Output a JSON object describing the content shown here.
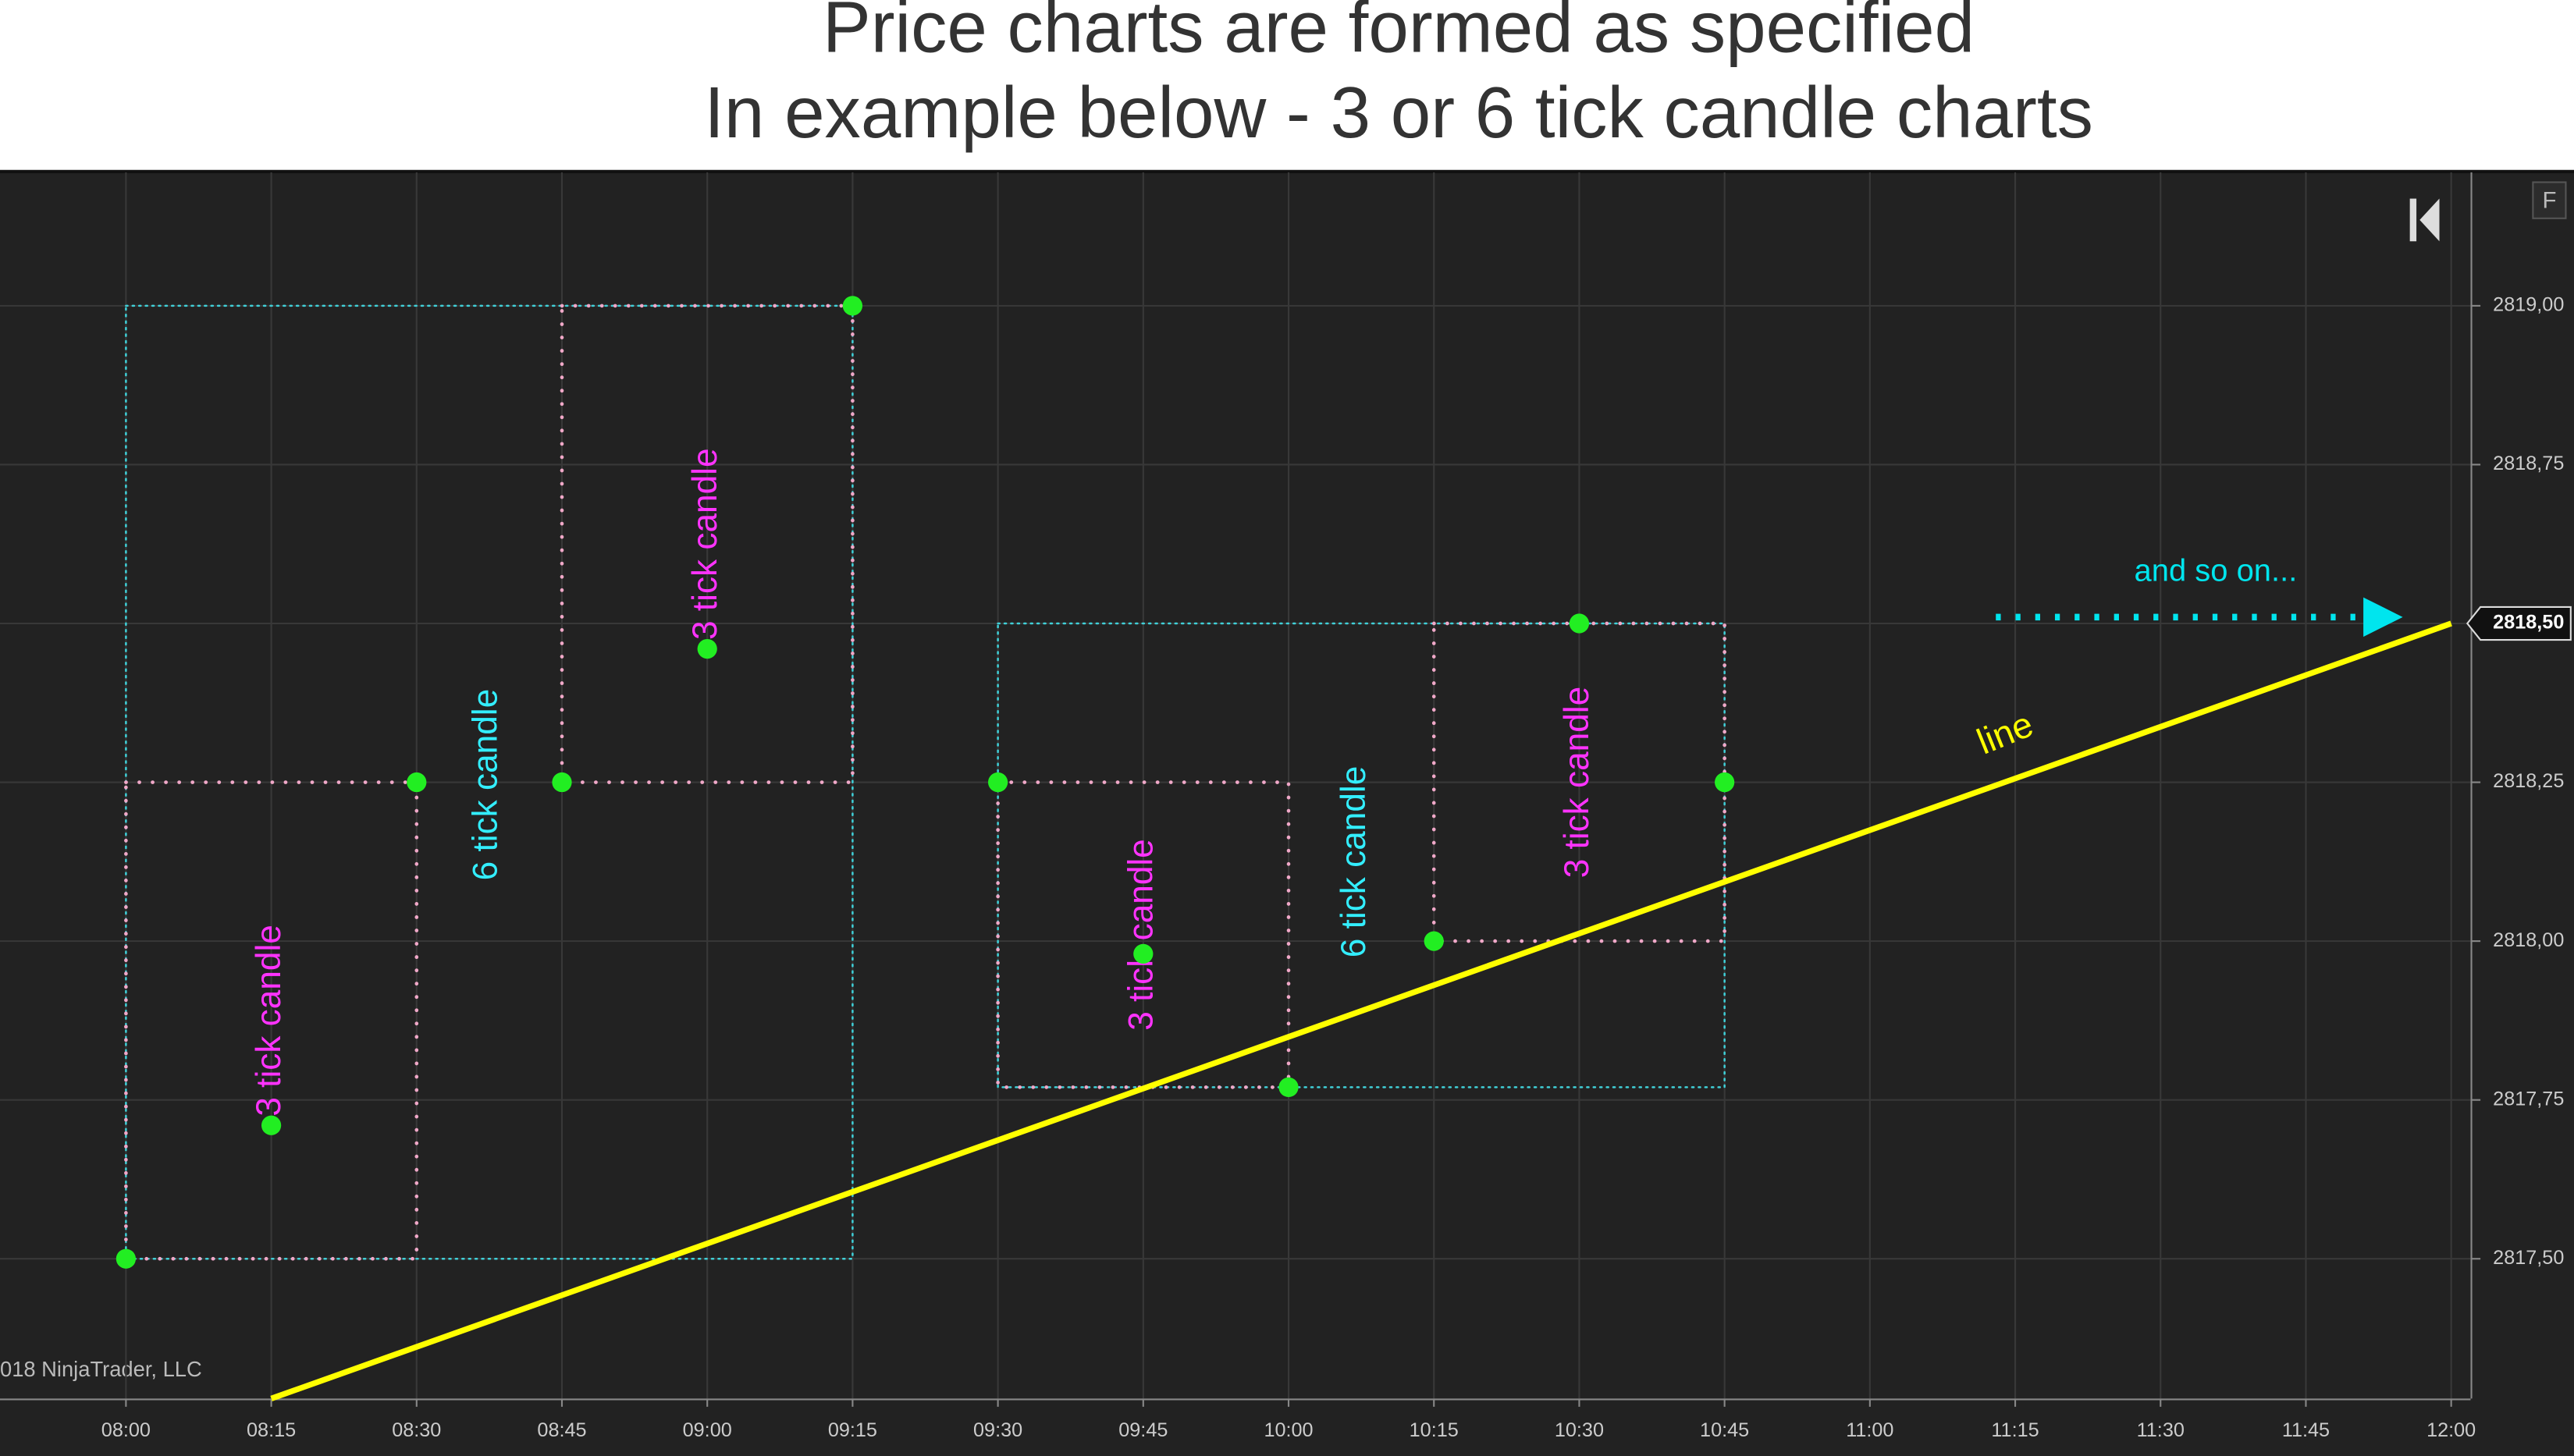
{
  "title_lines": [
    "Price charts are formed as specified",
    "In example below - 3 or 6 tick candle charts"
  ],
  "chart_data": {
    "type": "scatter",
    "xlim": [
      "07:47",
      "12:02"
    ],
    "ylim": [
      2817.28,
      2819.21
    ],
    "xticks": [
      "08:00",
      "08:15",
      "08:30",
      "08:45",
      "09:00",
      "09:15",
      "09:30",
      "09:45",
      "10:00",
      "10:15",
      "10:30",
      "10:45",
      "11:00",
      "11:15",
      "11:30",
      "11:45",
      "12:00"
    ],
    "yticks": [
      {
        "value": 2817.5,
        "label": "2817,50"
      },
      {
        "value": 2817.75,
        "label": "2817,75"
      },
      {
        "value": 2818,
        "label": "2818,00"
      },
      {
        "value": 2818.25,
        "label": "2818,25"
      },
      {
        "value": 2818.5,
        "label": "2818,50"
      },
      {
        "value": 2818.75,
        "label": "2818,75"
      },
      {
        "value": 2819,
        "label": "2819,00"
      }
    ],
    "grid": true,
    "points": {
      "color": "#22ee22",
      "x": [
        "08:00",
        "08:15",
        "08:30",
        "08:45",
        "09:00",
        "09:15",
        "09:30",
        "09:45",
        "10:00",
        "10:15",
        "10:30",
        "10:45"
      ],
      "y": [
        2817.5,
        2817.71,
        2818.25,
        2818.25,
        2818.46,
        2819,
        2818.25,
        2817.98,
        2817.77,
        2818,
        2818.5,
        2818.25
      ]
    },
    "candles": [
      {
        "label": "6 tick candle",
        "color": "#40d0d8",
        "x": [
          "08:00",
          "09:15"
        ],
        "y": [
          2817.5,
          2819
        ]
      },
      {
        "label": "3 tick candle",
        "color": "#f0a8c8",
        "x": [
          "08:00",
          "08:30"
        ],
        "y": [
          2817.5,
          2818.25
        ]
      },
      {
        "label": "3 tick candle",
        "color": "#f0a8c8",
        "x": [
          "08:45",
          "09:15"
        ],
        "y": [
          2818.25,
          2819
        ]
      },
      {
        "label": "6 tick candle",
        "color": "#40d0d8",
        "x": [
          "09:30",
          "10:45"
        ],
        "y": [
          2817.77,
          2818.5
        ]
      },
      {
        "label": "3 tick candle",
        "color": "#f0a8c8",
        "x": [
          "09:30",
          "10:00"
        ],
        "y": [
          2817.77,
          2818.25
        ]
      },
      {
        "label": "3 tick candle",
        "color": "#f0a8c8",
        "x": [
          "10:15",
          "10:45"
        ],
        "y": [
          2818,
          2818.5
        ]
      }
    ],
    "line": {
      "label": "line",
      "color": "#ffff00",
      "x": [
        "08:15",
        "12:00"
      ],
      "y": [
        2817.28,
        2818.5
      ]
    },
    "arrow": {
      "label": "and so on...",
      "color": "#00e5ee",
      "x": [
        "11:13",
        "11:55"
      ],
      "y": 2818.51
    },
    "last_price": {
      "value": 2818.5,
      "label": "2818,50"
    },
    "copyright": "018 NinjaTrader, LLC",
    "button": "F"
  }
}
